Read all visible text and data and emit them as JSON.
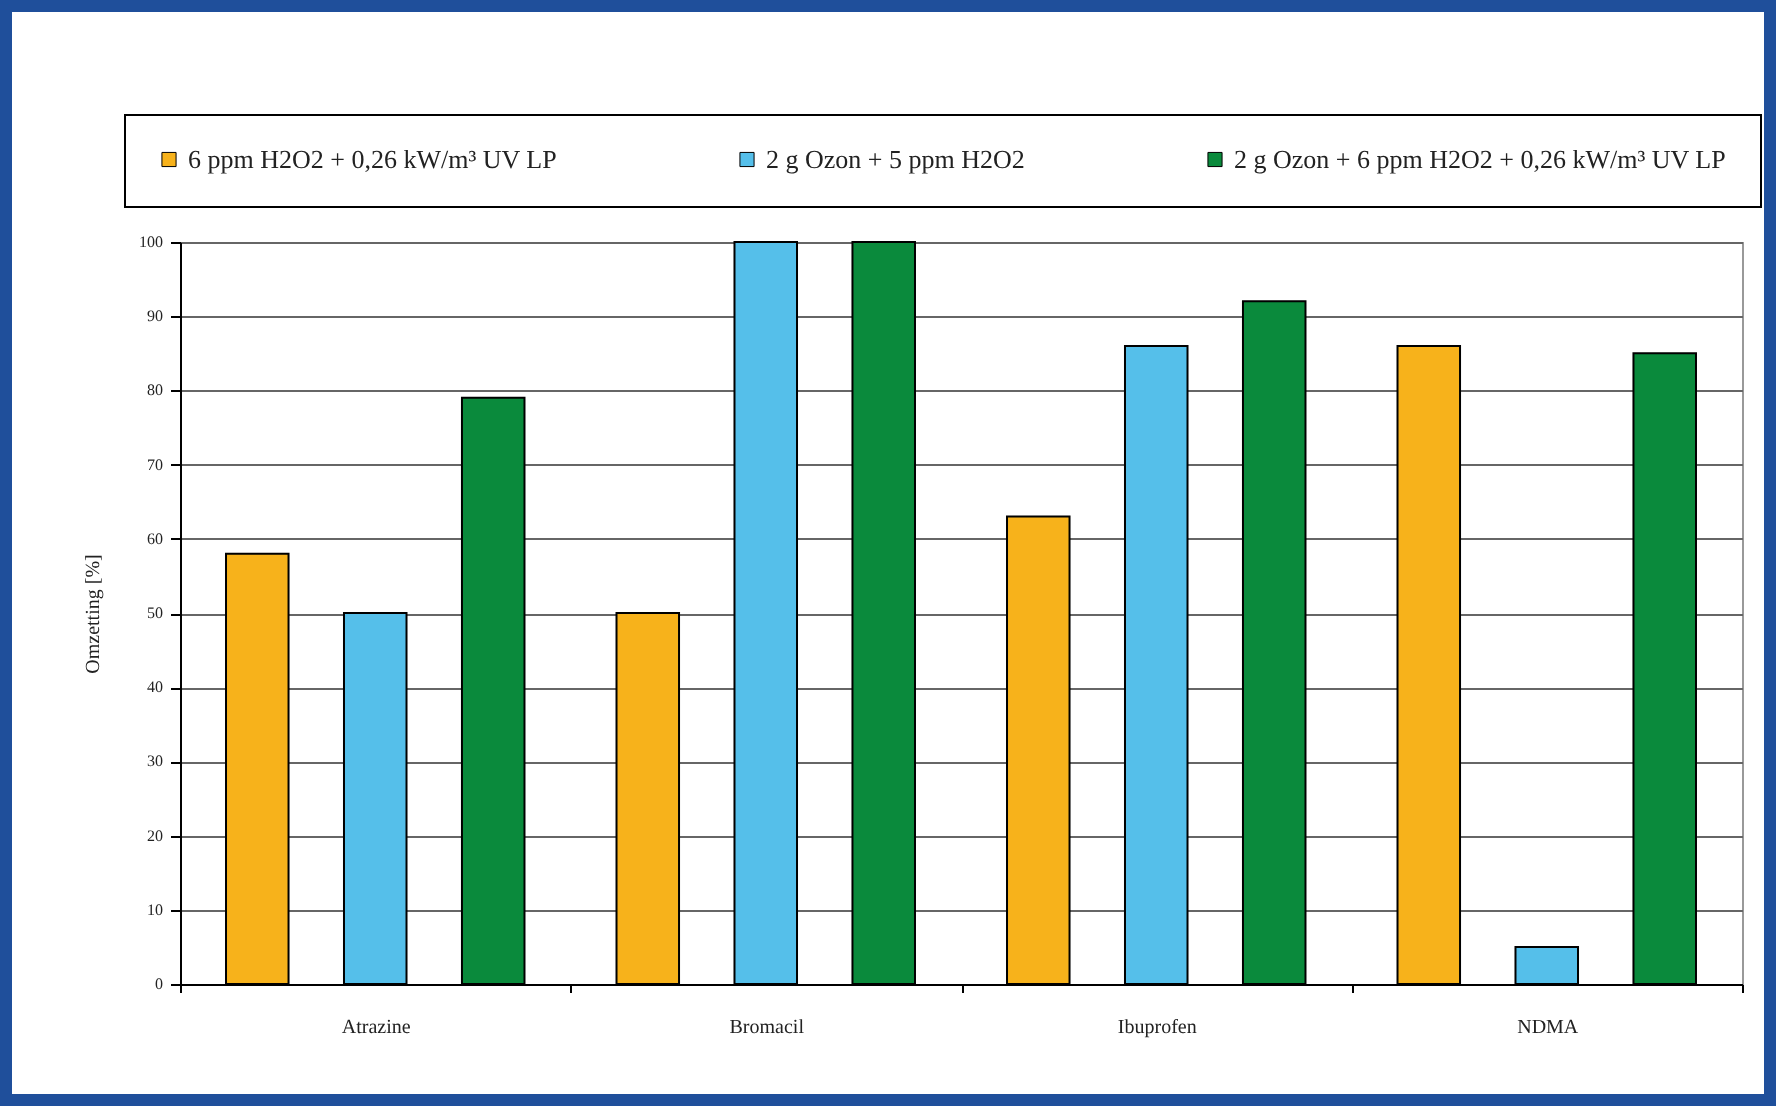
{
  "chart_data": {
    "type": "bar",
    "ylabel": "Omzetting [%]",
    "categories": [
      "Atrazine",
      "Bromacil",
      "Ibuprofen",
      "NDMA"
    ],
    "series": [
      {
        "name": "6 ppm H2O2 + 0,26 kW/m³ UV LP",
        "color": "#f7b21b",
        "values": [
          58,
          50,
          63,
          86
        ]
      },
      {
        "name": "2 g Ozon + 5 ppm H2O2",
        "color": "#55bfea",
        "values": [
          50,
          100,
          86,
          5
        ]
      },
      {
        "name": "2 g Ozon + 6 ppm H2O2 + 0,26 kW/m³ UV LP",
        "color": "#0a8a3c",
        "values": [
          79,
          100,
          92,
          85
        ]
      }
    ],
    "ylim": [
      0,
      100
    ],
    "yticks": [
      0,
      10,
      20,
      30,
      40,
      50,
      60,
      70,
      80,
      90,
      100
    ],
    "grid": "y",
    "legend": "top"
  }
}
